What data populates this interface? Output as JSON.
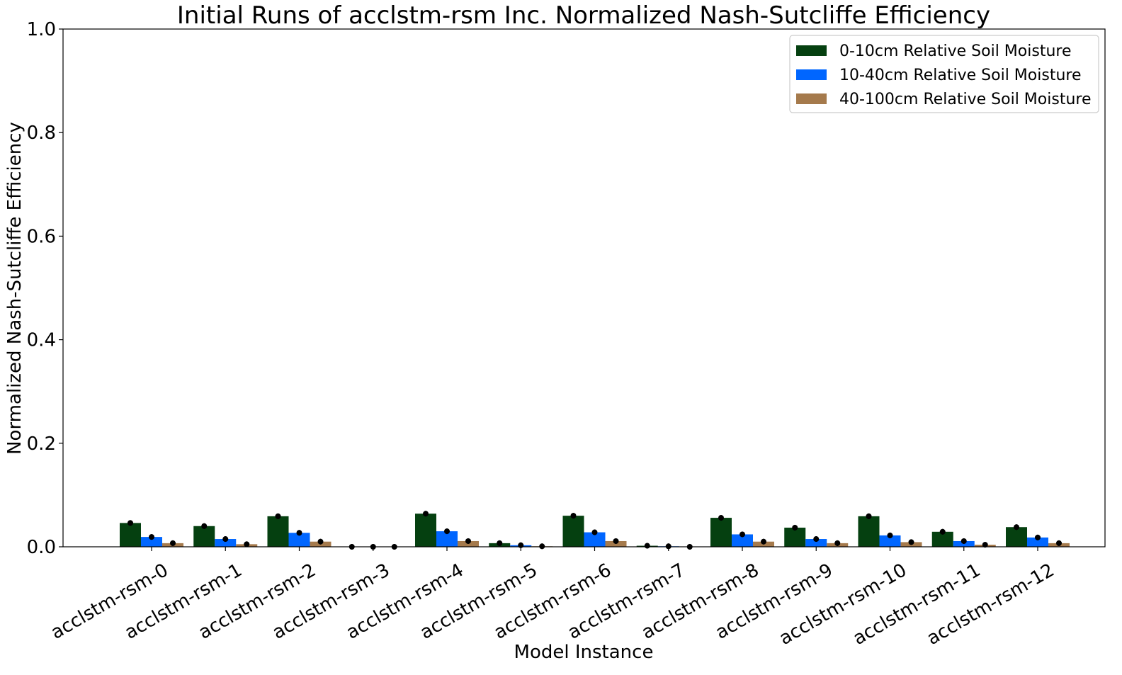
{
  "chart_data": {
    "type": "bar",
    "title": "Initial Runs of acclstm-rsm Inc. Normalized Nash-Sutcliffe Efficiency",
    "xlabel": "Model Instance",
    "ylabel": "Normalized Nash-Sutcliffe Efficiency",
    "ylim": [
      0,
      1.0
    ],
    "yticks": [
      "0.0",
      "0.2",
      "0.4",
      "0.6",
      "0.8",
      "1.0"
    ],
    "ytick_values": [
      0,
      0.2,
      0.4,
      0.6,
      0.8,
      1.0
    ],
    "grid": false,
    "legend_position": "top-right",
    "categories": [
      "acclstm-rsm-0",
      "acclstm-rsm-1",
      "acclstm-rsm-2",
      "acclstm-rsm-3",
      "acclstm-rsm-4",
      "acclstm-rsm-5",
      "acclstm-rsm-6",
      "acclstm-rsm-7",
      "acclstm-rsm-8",
      "acclstm-rsm-9",
      "acclstm-rsm-10",
      "acclstm-rsm-11",
      "acclstm-rsm-12"
    ],
    "series": [
      {
        "name": "0-10cm Relative Soil Moisture",
        "color": "#054010",
        "values": [
          0.046,
          0.04,
          0.059,
          0.0,
          0.064,
          0.007,
          0.06,
          0.002,
          0.056,
          0.037,
          0.059,
          0.029,
          0.038
        ]
      },
      {
        "name": "10-40cm Relative Soil Moisture",
        "color": "#0066ff",
        "values": [
          0.019,
          0.015,
          0.027,
          0.0,
          0.03,
          0.003,
          0.028,
          0.001,
          0.024,
          0.015,
          0.022,
          0.011,
          0.018
        ]
      },
      {
        "name": "40-100cm Relative Soil Moisture",
        "color": "#a57a4c",
        "values": [
          0.007,
          0.005,
          0.01,
          0.0,
          0.011,
          0.001,
          0.011,
          0.0,
          0.01,
          0.007,
          0.009,
          0.004,
          0.007
        ]
      }
    ],
    "marker_color": "#000000"
  }
}
